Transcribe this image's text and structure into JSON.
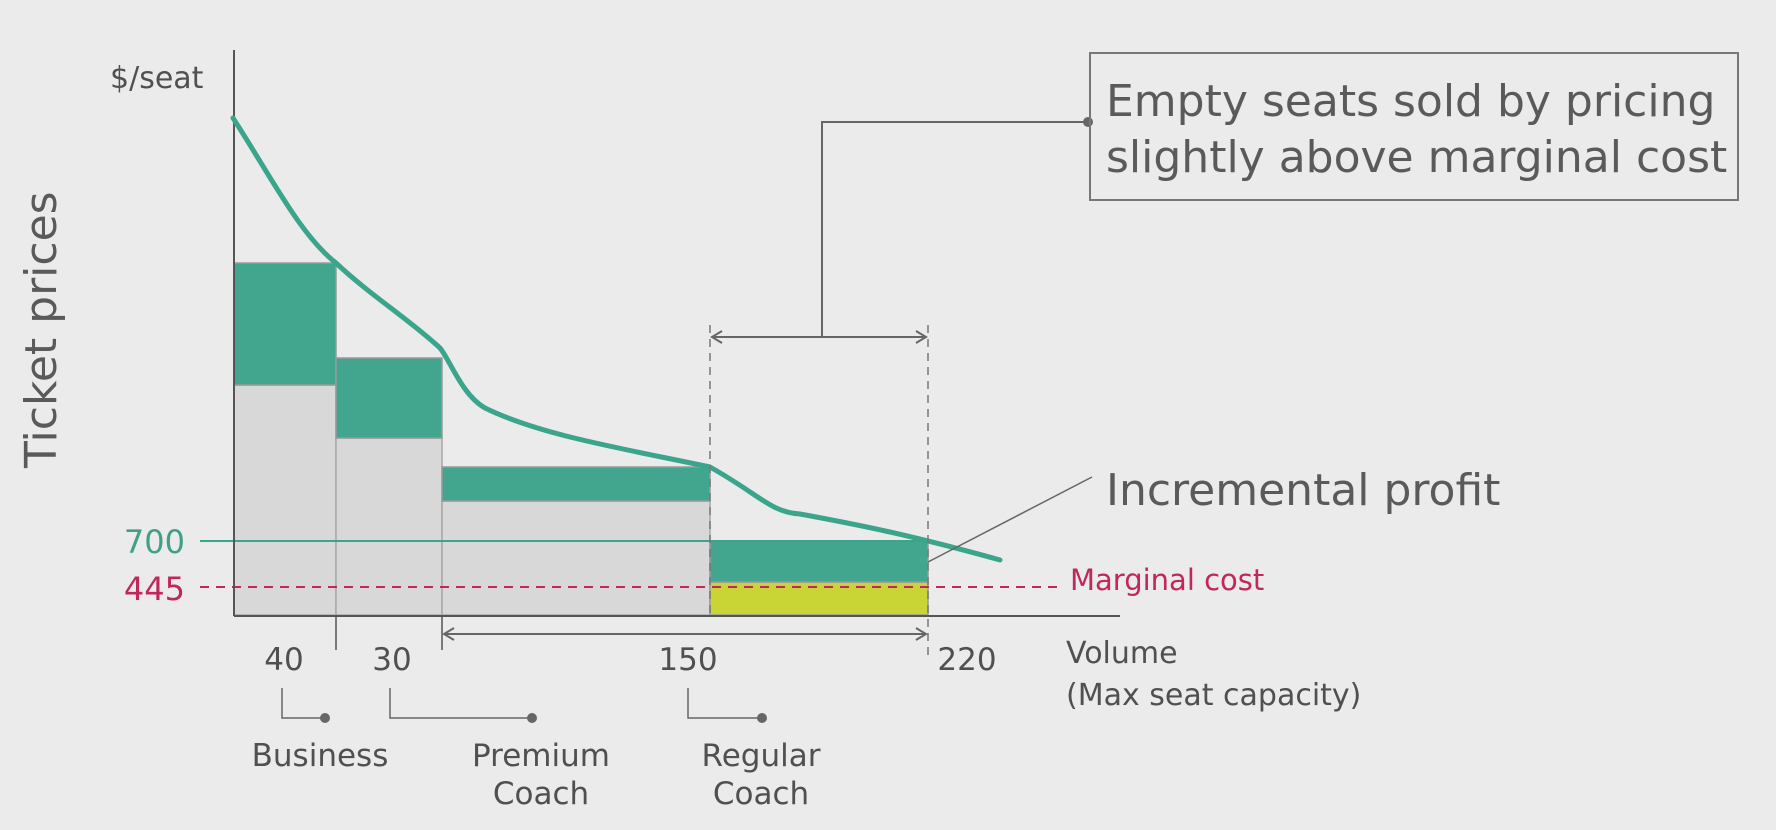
{
  "y_axis_unit": "$/seat",
  "y_axis_title": "Ticket prices",
  "x_axis_label": [
    "Volume",
    "(Max seat capacity)"
  ],
  "levels": [
    {
      "label": "700",
      "color": "#3f9f87"
    },
    {
      "label": "445",
      "color": "#c0275a"
    }
  ],
  "marginal_cost_label": "Marginal cost",
  "volume_ticks": [
    "40",
    "30",
    "150",
    "220"
  ],
  "segments": [
    {
      "lines": [
        "Business"
      ]
    },
    {
      "lines": [
        "Premium",
        "Coach"
      ]
    },
    {
      "lines": [
        "Regular",
        "Coach"
      ]
    }
  ],
  "callout_box": [
    "Empty seats sold by pricing",
    "slightly above marginal cost"
  ],
  "incremental_profit_label": "Incremental profit",
  "colors": {
    "teal": "#42a58e",
    "curve": "#3aa58a",
    "gray_fill": "#d8d8d8",
    "yellow_green": "#c8d534",
    "marginal_cost": "#c0275a",
    "background": "#ebebeb"
  }
}
